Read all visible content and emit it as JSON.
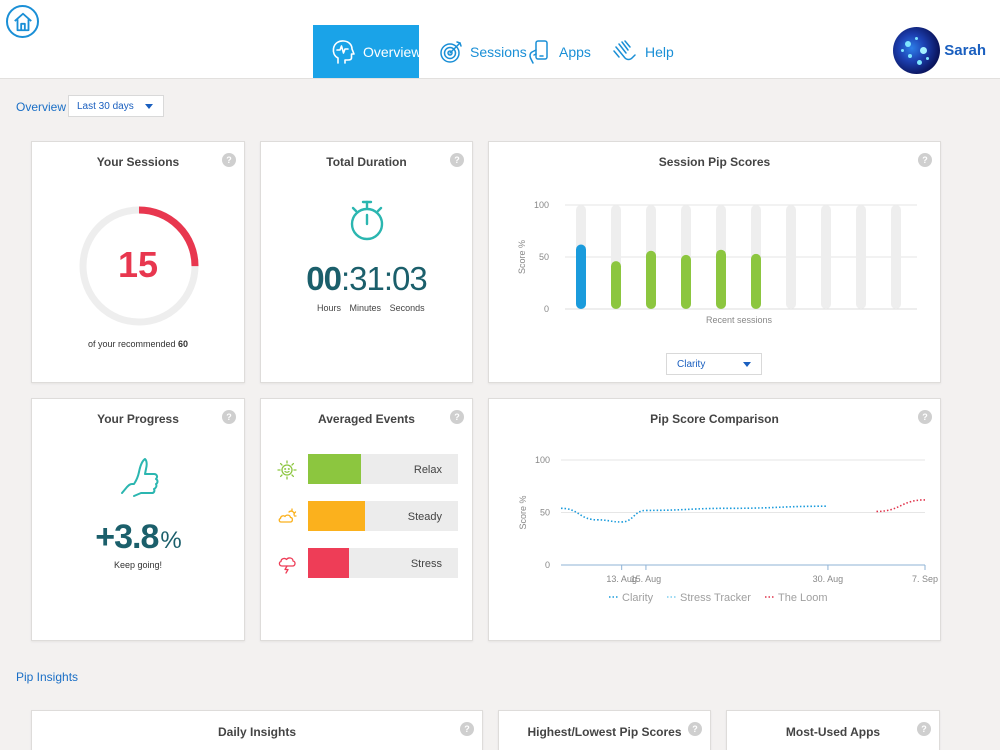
{
  "header": {
    "nav": [
      {
        "label": "Overview",
        "icon": "head-pulse-icon",
        "active": true
      },
      {
        "label": "Sessions",
        "icon": "target-icon",
        "active": false
      },
      {
        "label": "Apps",
        "icon": "phone-hand-icon",
        "active": false
      },
      {
        "label": "Help",
        "icon": "hand-wave-icon",
        "active": false
      }
    ],
    "user_name": "Sarah"
  },
  "subbar": {
    "overview_label": "Overview",
    "range": "Last 30 days"
  },
  "cards": {
    "sessions": {
      "title": "Your Sessions",
      "count": "15",
      "sub_prefix": "of your recommended",
      "recommended": "60",
      "completed": 15,
      "target": 60,
      "help": "?"
    },
    "duration": {
      "title": "Total Duration",
      "hours": "00",
      "minutes": "31",
      "seconds": "03",
      "labels": [
        "Hours",
        "Minutes",
        "Seconds"
      ],
      "help": "?"
    },
    "pip_scores": {
      "title": "Session Pip Scores",
      "metric": "Clarity",
      "help": "?"
    },
    "progress": {
      "title": "Your Progress",
      "value": "+3.8",
      "unit": "%",
      "sub": "Keep going!",
      "help": "?"
    },
    "events": {
      "title": "Averaged Events",
      "help": "?",
      "items": [
        {
          "label": "Relax",
          "value": 0.35,
          "color": "#8cc63f",
          "icon": "sun-face-icon"
        },
        {
          "label": "Steady",
          "value": 0.38,
          "color": "#fbb11d",
          "icon": "cloud-sun-icon"
        },
        {
          "label": "Stress",
          "value": 0.27,
          "color": "#ee3d57",
          "icon": "storm-cloud-icon"
        }
      ]
    },
    "comparison": {
      "title": "Pip Score Comparison",
      "help": "?"
    }
  },
  "chart_data": [
    {
      "type": "bar",
      "title": "Session Pip Scores",
      "ylabel": "Score %",
      "xlabel": "Recent sessions",
      "ylim": [
        0,
        100
      ],
      "yticks": [
        0,
        50,
        100
      ],
      "values": [
        62,
        46,
        56,
        52,
        57,
        53,
        null,
        null,
        null,
        null
      ],
      "colors": [
        "#1a9bdc",
        "#8cc63f",
        "#8cc63f",
        "#8cc63f",
        "#8cc63f",
        "#8cc63f"
      ],
      "grid": true
    },
    {
      "type": "line",
      "title": "Pip Score Comparison",
      "ylabel": "Score %",
      "ylim": [
        0,
        100
      ],
      "yticks": [
        0,
        50,
        100
      ],
      "xticks": [
        "13. Aug",
        "15. Aug",
        "30. Aug",
        "7. Sep"
      ],
      "series": [
        {
          "name": "Clarity",
          "color": "#1a9bdc",
          "points": [
            [
              "8. Aug",
              54
            ],
            [
              "11. Aug",
              43
            ],
            [
              "13. Aug",
              41
            ],
            [
              "15. Aug",
              52
            ],
            [
              "22. Aug",
              54
            ],
            [
              "30. Aug",
              56
            ]
          ]
        },
        {
          "name": "Stress Tracker",
          "color": "#7ecff0",
          "points": []
        },
        {
          "name": "The Loom",
          "color": "#e0344c",
          "points": [
            [
              "3. Sep",
              51
            ],
            [
              "7. Sep",
              62
            ]
          ]
        }
      ],
      "legend": "bottom"
    }
  ],
  "insights": {
    "section_label": "Pip Insights",
    "cards": [
      {
        "title": "Daily Insights",
        "help": "?"
      },
      {
        "title": "Highest/Lowest Pip Scores",
        "help": "?"
      },
      {
        "title": "Most-Used Apps",
        "help": "?"
      }
    ]
  }
}
